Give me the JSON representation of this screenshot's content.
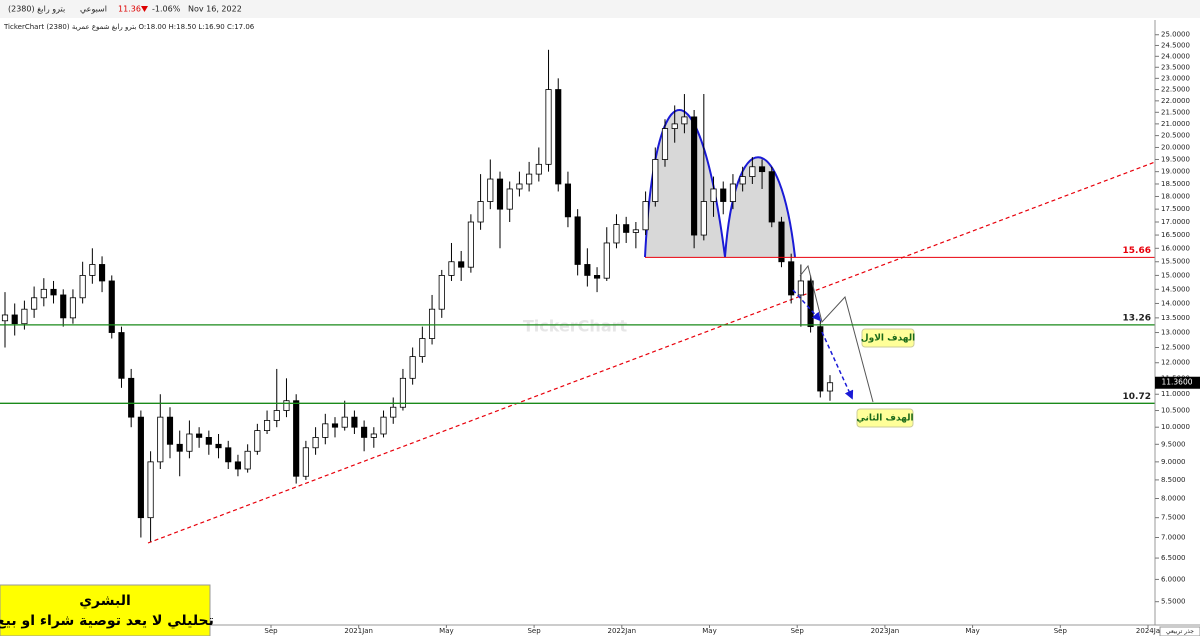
{
  "header": {
    "symbol": "بترو رابغ (2380)",
    "period": "اسبوعي",
    "last": "11.36",
    "change": "-1.06%",
    "date": "Nov 16, 2022",
    "info": "TickerChart بترو رابغ شموع عمرية (2380) O:18.00 H:18.50 L:16.90 C:17.06",
    "watermark": "TickerChart",
    "scale_name": "جذر تربيعي"
  },
  "note": {
    "author": "البشري",
    "disclaimer": "تحليلي لا يعد توصية شراء او بيع"
  },
  "chart_data": {
    "type": "candlestick",
    "scale": "sqrt",
    "up_color": "#ffffff",
    "down_color": "#000000",
    "x_labels": [
      "Sep",
      "2021Jan",
      "May",
      "Sep",
      "2022Jan",
      "May",
      "Sep",
      "2023Jan",
      "May",
      "Sep",
      "2024Ja"
    ],
    "ylim": [
      5.0,
      25.6
    ],
    "yticks": [
      {
        "value": 25.0,
        "label": "25.0000"
      },
      {
        "value": 24.5,
        "label": "24.5000"
      },
      {
        "value": 24.0,
        "label": "24.0000"
      },
      {
        "value": 23.5,
        "label": "23.5000"
      },
      {
        "value": 23.0,
        "label": "23.0000"
      },
      {
        "value": 22.5,
        "label": "22.5000"
      },
      {
        "value": 22.0,
        "label": "22.0000"
      },
      {
        "value": 21.5,
        "label": "21.5000"
      },
      {
        "value": 21.0,
        "label": "21.0000"
      },
      {
        "value": 20.5,
        "label": "20.5000"
      },
      {
        "value": 20.0,
        "label": "20.0000"
      },
      {
        "value": 19.5,
        "label": "19.5000"
      },
      {
        "value": 19.0,
        "label": "19.0000"
      },
      {
        "value": 18.5,
        "label": "18.5000"
      },
      {
        "value": 18.0,
        "label": "18.0000"
      },
      {
        "value": 17.5,
        "label": "17.5000"
      },
      {
        "value": 17.0,
        "label": "17.0000"
      },
      {
        "value": 16.5,
        "label": "16.5000"
      },
      {
        "value": 16.0,
        "label": "16.0000"
      },
      {
        "value": 15.5,
        "label": "15.5000"
      },
      {
        "value": 15.0,
        "label": "15.0000"
      },
      {
        "value": 14.5,
        "label": "14.5000"
      },
      {
        "value": 14.0,
        "label": "14.0000"
      },
      {
        "value": 13.5,
        "label": "13.5000"
      },
      {
        "value": 13.0,
        "label": "13.0000"
      },
      {
        "value": 12.5,
        "label": "12.5000"
      },
      {
        "value": 12.0,
        "label": "12.0000"
      },
      {
        "value": 11.5,
        "label": "11.5000"
      },
      {
        "value": 11.0,
        "label": "11.0000"
      },
      {
        "value": 10.5,
        "label": "10.5000"
      },
      {
        "value": 10.0,
        "label": "10.0000"
      },
      {
        "value": 9.5,
        "label": "9.5000"
      },
      {
        "value": 9.0,
        "label": "9.0000"
      },
      {
        "value": 8.5,
        "label": "8.5000"
      },
      {
        "value": 8.0,
        "label": "8.0000"
      },
      {
        "value": 7.5,
        "label": "7.5000"
      },
      {
        "value": 7.0,
        "label": "7.0000"
      },
      {
        "value": 6.5,
        "label": "6.5000"
      },
      {
        "value": 6.0,
        "label": "6.0000"
      },
      {
        "value": 5.5,
        "label": "5.5000"
      }
    ],
    "levels": [
      {
        "value": 15.66,
        "color": "#e8000b"
      },
      {
        "value": 13.26,
        "color": "#1a8a1a"
      },
      {
        "value": 10.72,
        "color": "#1a8a1a"
      }
    ],
    "last_price": {
      "value": 11.36,
      "label": "11.3600"
    },
    "annotations": [
      "الهدف الاول",
      "الهدف الثاني"
    ],
    "ohlc": [
      [
        13.4,
        14.4,
        12.5,
        13.6
      ],
      [
        13.6,
        14.0,
        12.9,
        13.3
      ],
      [
        13.3,
        14.1,
        13.1,
        13.8
      ],
      [
        13.8,
        14.6,
        13.5,
        14.2
      ],
      [
        14.2,
        14.9,
        13.9,
        14.5
      ],
      [
        14.5,
        14.8,
        14.0,
        14.3
      ],
      [
        14.3,
        14.5,
        13.2,
        13.5
      ],
      [
        13.5,
        14.5,
        13.3,
        14.2
      ],
      [
        14.2,
        15.5,
        14.0,
        15.0
      ],
      [
        15.0,
        16.0,
        14.7,
        15.4
      ],
      [
        15.4,
        15.7,
        14.4,
        14.8
      ],
      [
        14.8,
        15.0,
        12.8,
        13.0
      ],
      [
        13.0,
        13.2,
        11.2,
        11.5
      ],
      [
        11.5,
        11.8,
        10.0,
        10.3
      ],
      [
        10.3,
        10.5,
        7.0,
        7.5
      ],
      [
        7.5,
        9.3,
        6.9,
        9.0
      ],
      [
        9.0,
        11.0,
        8.8,
        10.3
      ],
      [
        10.3,
        10.6,
        9.1,
        9.5
      ],
      [
        9.5,
        9.9,
        8.6,
        9.3
      ],
      [
        9.3,
        10.2,
        9.1,
        9.8
      ],
      [
        9.8,
        10.0,
        9.4,
        9.7
      ],
      [
        9.7,
        9.9,
        9.2,
        9.5
      ],
      [
        9.5,
        9.8,
        9.1,
        9.4
      ],
      [
        9.4,
        9.6,
        8.8,
        9.0
      ],
      [
        9.0,
        9.2,
        8.6,
        8.8
      ],
      [
        8.8,
        9.5,
        8.7,
        9.3
      ],
      [
        9.3,
        10.1,
        9.2,
        9.9
      ],
      [
        9.9,
        10.5,
        9.8,
        10.2
      ],
      [
        10.2,
        11.8,
        10.0,
        10.5
      ],
      [
        10.5,
        11.5,
        10.3,
        10.8
      ],
      [
        10.8,
        11.0,
        8.4,
        8.6
      ],
      [
        8.6,
        9.6,
        8.5,
        9.4
      ],
      [
        9.4,
        10.0,
        9.2,
        9.7
      ],
      [
        9.7,
        10.4,
        9.5,
        10.1
      ],
      [
        10.1,
        10.3,
        9.7,
        10.0
      ],
      [
        10.0,
        10.8,
        9.9,
        10.3
      ],
      [
        10.3,
        10.5,
        9.8,
        10.0
      ],
      [
        10.0,
        10.2,
        9.3,
        9.7
      ],
      [
        9.7,
        10.0,
        9.4,
        9.8
      ],
      [
        9.8,
        10.5,
        9.7,
        10.3
      ],
      [
        10.3,
        10.9,
        10.1,
        10.6
      ],
      [
        10.6,
        11.8,
        10.5,
        11.5
      ],
      [
        11.5,
        12.5,
        11.3,
        12.2
      ],
      [
        12.2,
        13.2,
        12.0,
        12.8
      ],
      [
        12.8,
        14.3,
        12.6,
        13.8
      ],
      [
        13.8,
        15.2,
        13.5,
        15.0
      ],
      [
        15.0,
        16.2,
        14.8,
        15.5
      ],
      [
        15.5,
        15.9,
        14.8,
        15.3
      ],
      [
        15.3,
        17.3,
        15.1,
        17.0
      ],
      [
        17.0,
        18.9,
        16.7,
        17.8
      ],
      [
        17.8,
        19.5,
        17.5,
        18.7
      ],
      [
        18.7,
        19.0,
        16.0,
        17.5
      ],
      [
        17.5,
        18.6,
        17.0,
        18.3
      ],
      [
        18.3,
        19.0,
        18.0,
        18.5
      ],
      [
        18.5,
        19.4,
        18.2,
        18.9
      ],
      [
        18.9,
        20.0,
        18.6,
        19.3
      ],
      [
        19.3,
        24.3,
        19.0,
        22.5
      ],
      [
        22.5,
        23.0,
        18.2,
        18.5
      ],
      [
        18.5,
        19.0,
        16.8,
        17.2
      ],
      [
        17.2,
        17.5,
        15.0,
        15.4
      ],
      [
        15.4,
        16.0,
        14.6,
        15.0
      ],
      [
        15.0,
        15.3,
        14.4,
        14.9
      ],
      [
        14.9,
        16.8,
        14.8,
        16.2
      ],
      [
        16.2,
        17.3,
        16.0,
        16.9
      ],
      [
        16.9,
        17.2,
        16.2,
        16.6
      ],
      [
        16.6,
        17.0,
        16.0,
        16.7
      ],
      [
        16.7,
        18.2,
        16.5,
        17.8
      ],
      [
        17.8,
        20.0,
        17.6,
        19.5
      ],
      [
        19.5,
        21.2,
        19.2,
        20.8
      ],
      [
        20.8,
        21.8,
        20.2,
        21.0
      ],
      [
        21.0,
        22.3,
        20.6,
        21.3
      ],
      [
        21.3,
        21.6,
        16.0,
        16.5
      ],
      [
        16.5,
        22.3,
        16.3,
        17.8
      ],
      [
        17.8,
        18.8,
        17.2,
        18.3
      ],
      [
        18.3,
        18.6,
        17.3,
        17.8
      ],
      [
        17.8,
        18.9,
        17.5,
        18.5
      ],
      [
        18.5,
        19.2,
        18.2,
        18.8
      ],
      [
        18.8,
        19.6,
        18.5,
        19.2
      ],
      [
        19.2,
        19.5,
        18.3,
        19.0
      ],
      [
        19.0,
        19.2,
        16.8,
        17.0
      ],
      [
        17.0,
        17.2,
        15.3,
        15.5
      ],
      [
        15.5,
        15.8,
        14.0,
        14.3
      ],
      [
        14.3,
        15.4,
        13.2,
        14.8
      ],
      [
        14.8,
        15.0,
        13.0,
        13.2
      ],
      [
        13.2,
        13.4,
        10.9,
        11.1
      ],
      [
        11.1,
        11.6,
        10.8,
        11.36
      ]
    ]
  }
}
